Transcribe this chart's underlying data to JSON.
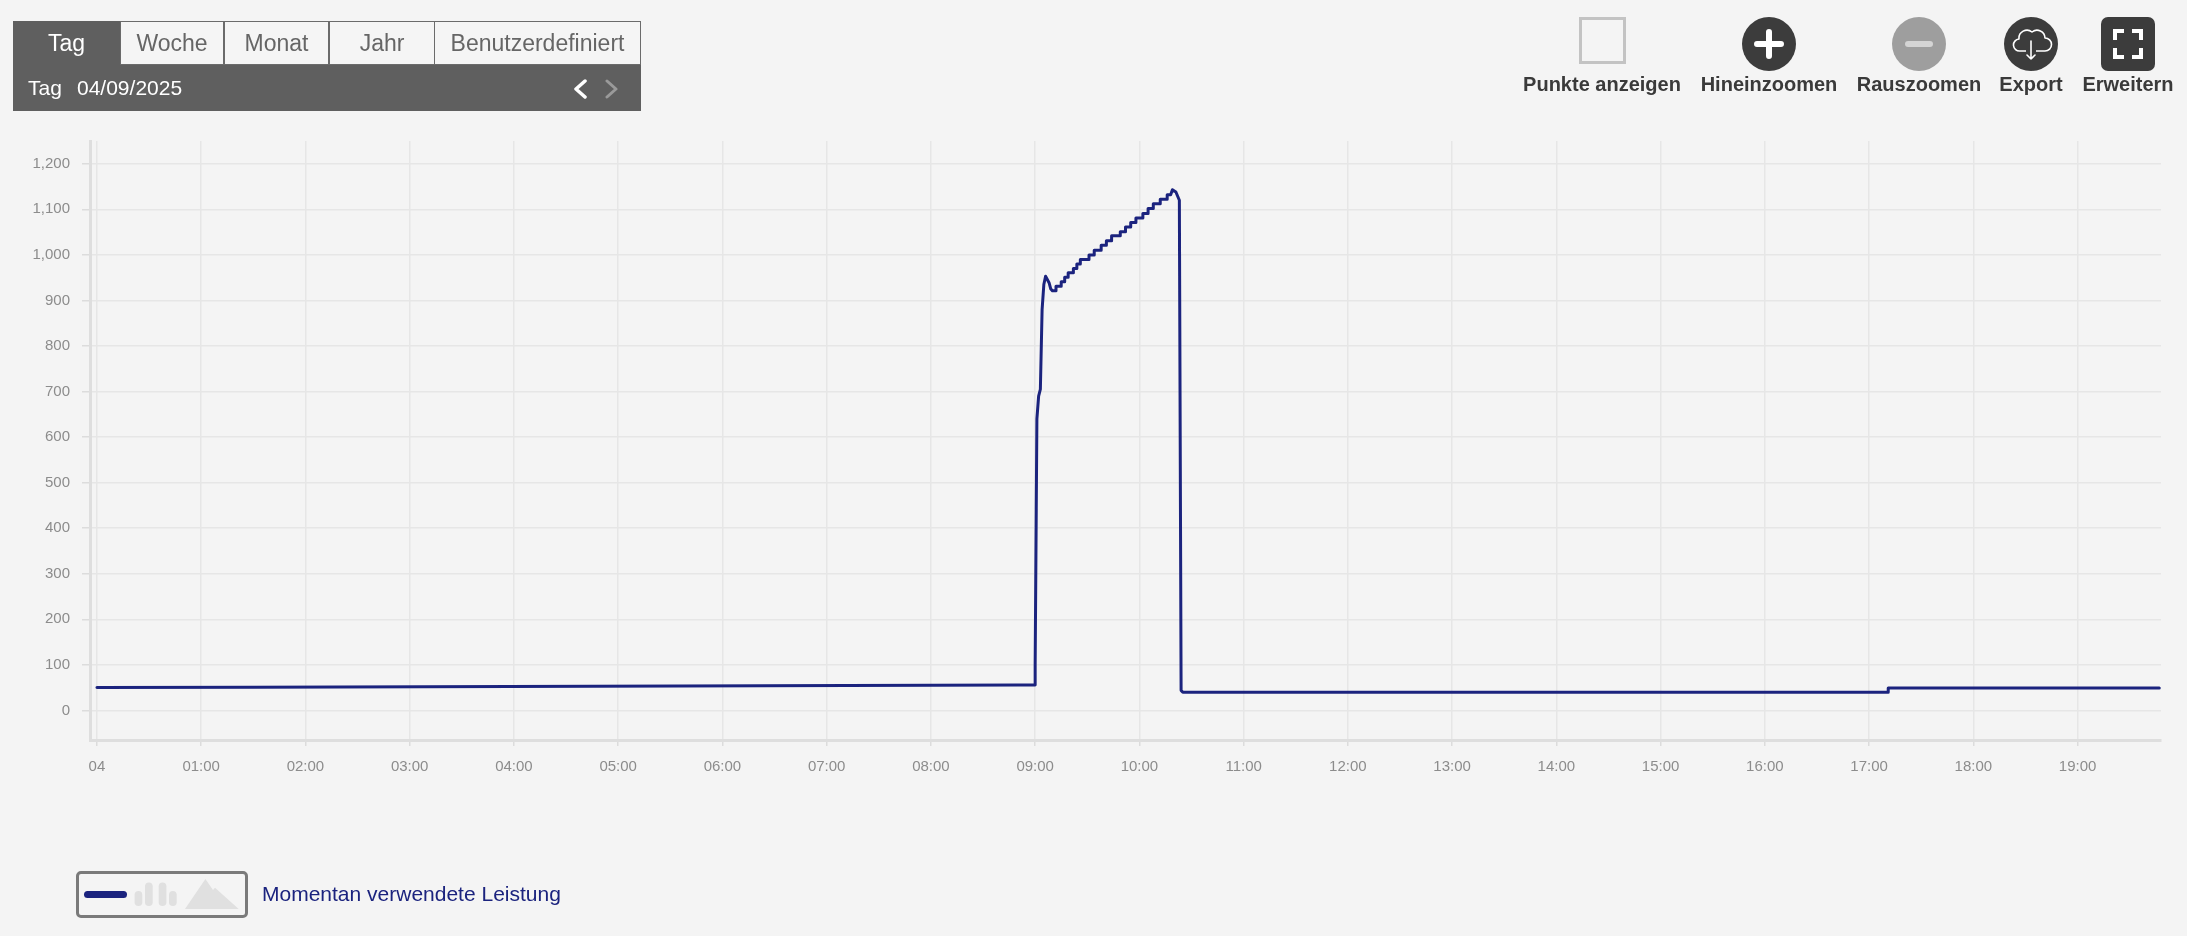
{
  "chart_data": {
    "type": "line",
    "annotations": [
      "Tag",
      "Woche",
      "Monat",
      "Jahr",
      "Benutzerdefiniert",
      "Tag",
      "04/09/2025",
      "Punkte anzeigen",
      "Hineinzoomen",
      "Rauszoomen",
      "Export",
      "Erweitern"
    ],
    "x": [
      "2025-09-04T00:00",
      "2025-09-04T09:00",
      "2025-09-04T09:00",
      "2025-09-04T09:01",
      "2025-09-04T09:02",
      "2025-09-04T09:03",
      "2025-09-04T09:04",
      "2025-09-04T09:05",
      "2025-09-04T09:06",
      "2025-09-04T09:08",
      "2025-09-04T09:09",
      "2025-09-04T09:10",
      "2025-09-04T09:12",
      "2025-09-04T09:12",
      "2025-09-04T09:15",
      "2025-09-04T09:15",
      "2025-09-04T09:17",
      "2025-09-04T09:17",
      "2025-09-04T09:19",
      "2025-09-04T09:19",
      "2025-09-04T09:22",
      "2025-09-04T09:22",
      "2025-09-04T09:24",
      "2025-09-04T09:24",
      "2025-09-04T09:26",
      "2025-09-04T09:26",
      "2025-09-04T09:31",
      "2025-09-04T09:31",
      "2025-09-04T09:34",
      "2025-09-04T09:34",
      "2025-09-04T09:38",
      "2025-09-04T09:38",
      "2025-09-04T09:41",
      "2025-09-04T09:41",
      "2025-09-04T09:44",
      "2025-09-04T09:44",
      "2025-09-04T09:49",
      "2025-09-04T09:49",
      "2025-09-04T09:52",
      "2025-09-04T09:52",
      "2025-09-04T09:55",
      "2025-09-04T09:55",
      "2025-09-04T09:58",
      "2025-09-04T09:58",
      "2025-09-04T10:02",
      "2025-09-04T10:02",
      "2025-09-04T10:05",
      "2025-09-04T10:05",
      "2025-09-04T10:08",
      "2025-09-04T10:08",
      "2025-09-04T10:12",
      "2025-09-04T10:12",
      "2025-09-04T10:16",
      "2025-09-04T10:16",
      "2025-09-04T10:18",
      "2025-09-04T10:19",
      "2025-09-04T10:21",
      "2025-09-04T10:23",
      "2025-09-04T10:24",
      "2025-09-04T10:25",
      "2025-09-04T17:11",
      "2025-09-04T17:11",
      "2025-09-04T19:47"
    ],
    "series": [
      {
        "name": "Momentan verwendete Leistung",
        "color": "#1b237e",
        "values": [
          50,
          56,
          100,
          640,
          690,
          705,
          880,
          935,
          953,
          939,
          925,
          921,
          921,
          931,
          931,
          941,
          941,
          951,
          951,
          961,
          961,
          970,
          970,
          980,
          980,
          990,
          990,
          1000,
          1000,
          1010,
          1010,
          1021,
          1021,
          1031,
          1031,
          1042,
          1042,
          1051,
          1051,
          1061,
          1061,
          1071,
          1071,
          1081,
          1081,
          1091,
          1091,
          1102,
          1102,
          1112,
          1112,
          1122,
          1122,
          1132,
          1132,
          1143,
          1138,
          1120,
          44,
          40,
          40,
          49,
          49
        ]
      }
    ],
    "xlim": [
      "2025-09-03T23:56",
      "2025-09-04T19:48"
    ],
    "xticks": [
      {
        "value": "2025-09-04T00:00",
        "label": "04"
      },
      {
        "value": "2025-09-04T01:00",
        "label": "01:00"
      },
      {
        "value": "2025-09-04T02:00",
        "label": "02:00"
      },
      {
        "value": "2025-09-04T03:00",
        "label": "03:00"
      },
      {
        "value": "2025-09-04T04:00",
        "label": "04:00"
      },
      {
        "value": "2025-09-04T05:00",
        "label": "05:00"
      },
      {
        "value": "2025-09-04T06:00",
        "label": "06:00"
      },
      {
        "value": "2025-09-04T07:00",
        "label": "07:00"
      },
      {
        "value": "2025-09-04T08:00",
        "label": "08:00"
      },
      {
        "value": "2025-09-04T09:00",
        "label": "09:00"
      },
      {
        "value": "2025-09-04T10:00",
        "label": "10:00"
      },
      {
        "value": "2025-09-04T11:00",
        "label": "11:00"
      },
      {
        "value": "2025-09-04T12:00",
        "label": "12:00"
      },
      {
        "value": "2025-09-04T13:00",
        "label": "13:00"
      },
      {
        "value": "2025-09-04T14:00",
        "label": "14:00"
      },
      {
        "value": "2025-09-04T15:00",
        "label": "15:00"
      },
      {
        "value": "2025-09-04T16:00",
        "label": "16:00"
      },
      {
        "value": "2025-09-04T17:00",
        "label": "17:00"
      },
      {
        "value": "2025-09-04T18:00",
        "label": "18:00"
      },
      {
        "value": "2025-09-04T19:00",
        "label": "19:00"
      }
    ],
    "ylim": [
      -65,
      1250
    ],
    "yticks": [
      0,
      100,
      200,
      300,
      400,
      500,
      600,
      700,
      800,
      900,
      {
        "value": 1000,
        "label": "1,000"
      },
      {
        "value": 1100,
        "label": "1,100"
      },
      {
        "value": 1200,
        "label": "1,200"
      }
    ],
    "grid": true,
    "legend": "bottom left"
  }
}
